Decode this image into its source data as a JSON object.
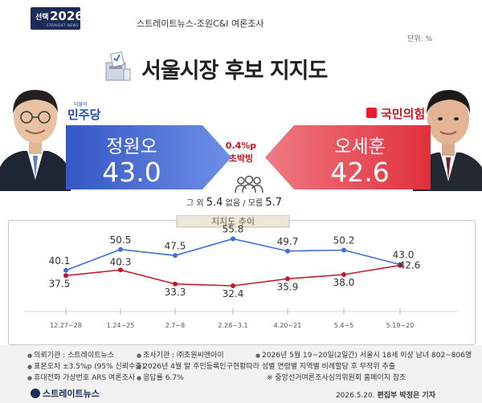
{
  "badge": {
    "prefix": "선택",
    "year": "2026",
    "sub": "STRAIGHT NEWS"
  },
  "header": {
    "survey": "스트레이트뉴스-조원C&I 여론조사",
    "unit": "단위: %"
  },
  "title": "서울시장 후보 지지도",
  "parties": {
    "left": "민주당",
    "left_sub": "더불어",
    "right": "국민의힘"
  },
  "candidates": {
    "left": {
      "name": "정원오",
      "value": "43.0"
    },
    "right": {
      "name": "오세훈",
      "value": "42.6"
    }
  },
  "margin": {
    "value": "0.4%p",
    "label": "초박빙"
  },
  "others": {
    "label1": "그 외",
    "v1": "5.4",
    "label2": "없음 / 모름",
    "v2": "5.7"
  },
  "colors": {
    "blue": "#4a6fd6",
    "red": "#e43c46",
    "line_blue": "#3f6fd9",
    "line_red": "#c01a28"
  },
  "chart_data": {
    "type": "line",
    "title": "지지도 추이",
    "x": [
      "12.27~28",
      "1.24~25",
      "2.7~8",
      "2.28~3.1",
      "4.20~21",
      "5.4~5",
      "5.19~20"
    ],
    "series": [
      {
        "name": "정원오",
        "values": [
          40.1,
          50.5,
          47.5,
          55.8,
          49.7,
          50.2,
          43.0
        ],
        "labels": [
          "40.1",
          "50.5",
          "47.5",
          "55.8",
          "49.7",
          "50.2",
          "43.0"
        ]
      },
      {
        "name": "오세훈",
        "values": [
          37.5,
          40.3,
          33.3,
          32.4,
          35.9,
          38.0,
          42.6
        ],
        "labels": [
          "37.5",
          "40.3",
          "33.3",
          "32.4",
          "35.9",
          "38.0",
          "42.6"
        ]
      }
    ],
    "xlabel": "",
    "ylabel": "",
    "grid": false,
    "legend": "none"
  },
  "meta": {
    "l1": "의뢰기관 : 스트레이트뉴스",
    "l2": "표본오차 ±3.5%p (95% 신뢰수준)",
    "l3": "휴대전화 가상번호 ARS 여론조사",
    "r1a": "조사기관 : ㈜조원씨앤아이",
    "r1b": "2026년 5월 19~20일(2일간) 서울시 18세 이상 남녀 802~806명",
    "r2": "2026년 4월 말 주민등록인구현황따라 성별 연령별 지역별 비례할당 후 무작위 추출",
    "r3a": "응답률 6.7%",
    "r3b": "※ 중앙선거여론조사심의위원회 홈페이지 참조"
  },
  "footer": {
    "logo": "스트레이트뉴스",
    "date": "2026.5.20.",
    "author": "편집부 박정은 기자"
  }
}
